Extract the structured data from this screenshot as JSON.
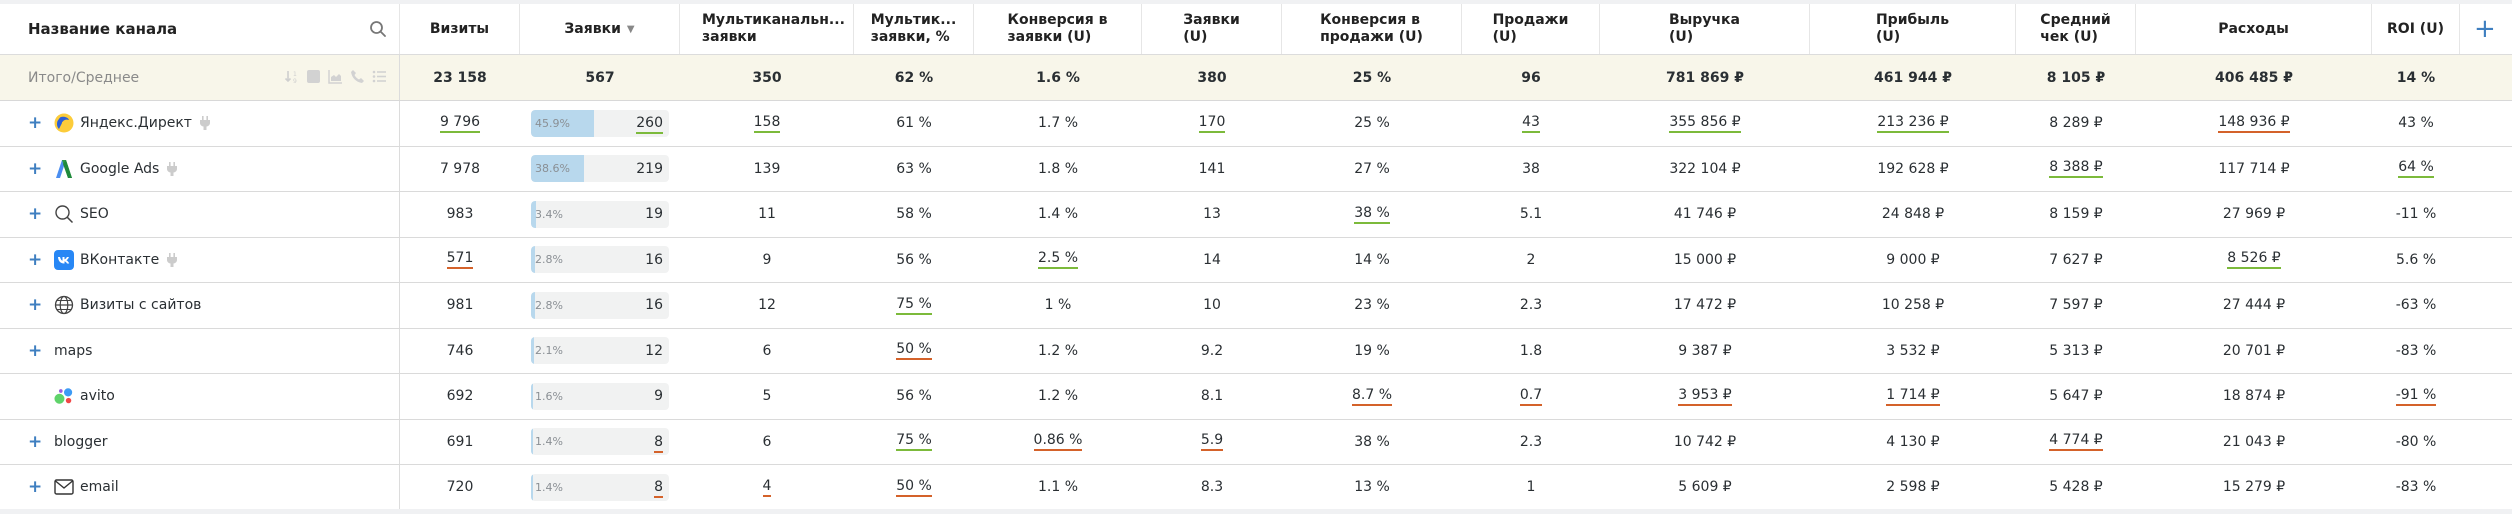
{
  "header": {
    "columns": [
      {
        "label": "Название канала"
      },
      {
        "label": "Визиты"
      },
      {
        "label": "Заявки",
        "sorted": "desc"
      },
      {
        "label": "Мультиканальн... заявки",
        "line1": "Мультиканальн...",
        "line2": "заявки"
      },
      {
        "label": "Мультик... заявки, %",
        "line1": "Мультик...",
        "line2": "заявки, %"
      },
      {
        "label": "Конверсия в заявки (U)",
        "line1": "Конверсия в",
        "line2": "заявки (U)"
      },
      {
        "label": "Заявки (U)",
        "line1": "Заявки",
        "line2": "(U)"
      },
      {
        "label": "Конверсия в продажи (U)",
        "line1": "Конверсия в",
        "line2": "продажи (U)"
      },
      {
        "label": "Продажи (U)",
        "line1": "Продажи",
        "line2": "(U)"
      },
      {
        "label": "Выручка (U)",
        "line1": "Выручка",
        "line2": "(U)"
      },
      {
        "label": "Прибыль (U)",
        "line1": "Прибыль",
        "line2": "(U)"
      },
      {
        "label": "Средний чек (U)",
        "line1": "Средний",
        "line2": "чек (U)"
      },
      {
        "label": "Расходы"
      },
      {
        "label": "ROI (U)"
      }
    ],
    "add_column_label": "+",
    "search_icon": "search-icon"
  },
  "total": {
    "label": "Итого/Среднее",
    "tools": [
      "sort-numeric-icon",
      "square-icon",
      "area-chart-icon",
      "phone-icon",
      "list-icon"
    ],
    "values": [
      "23 158",
      "567",
      "350",
      "62 %",
      "1.6 %",
      "380",
      "25 %",
      "96",
      "781 869 ₽",
      "461 944 ₽",
      "8 105 ₽",
      "406 485 ₽",
      "14 %"
    ]
  },
  "colors": {
    "good_underline": "#7cba3b",
    "bad_underline": "#d4622a",
    "bar_fill": "#b8d8ed",
    "total_bg": "#f8f6ea",
    "accent": "#3f7fc0"
  },
  "rows": [
    {
      "name": "Яндекс.Директ",
      "icon": "yandex-direct-icon",
      "expandable": true,
      "plug": true,
      "visits": "9 796",
      "leads_pct": "45.9%",
      "leads_share": 45.9,
      "leads": "260",
      "multi": "158",
      "multi_pct": "61 %",
      "conv_leads": "1.7 %",
      "leads_u": "170",
      "conv_sales": "25 %",
      "sales": "43",
      "revenue": "355 856 ₽",
      "profit": "213 236 ₽",
      "avg_check": "8 289 ₽",
      "costs": "148 936 ₽",
      "roi": "43 %",
      "marks": {
        "visits": "g",
        "leads": "g",
        "multi": "g",
        "leads_u": "g",
        "sales": "g",
        "revenue": "g",
        "profit": "g",
        "costs": "r"
      }
    },
    {
      "name": "Google Ads",
      "icon": "google-ads-icon",
      "expandable": true,
      "plug": true,
      "visits": "7 978",
      "leads_pct": "38.6%",
      "leads_share": 38.6,
      "leads": "219",
      "multi": "139",
      "multi_pct": "63 %",
      "conv_leads": "1.8 %",
      "leads_u": "141",
      "conv_sales": "27 %",
      "sales": "38",
      "revenue": "322 104 ₽",
      "profit": "192 628 ₽",
      "avg_check": "8 388 ₽",
      "costs": "117 714 ₽",
      "roi": "64 %",
      "marks": {
        "avg_check": "g",
        "roi": "g"
      }
    },
    {
      "name": "SEO",
      "icon": "magnifier-icon",
      "expandable": true,
      "plug": false,
      "visits": "983",
      "leads_pct": "3.4%",
      "leads_share": 3.4,
      "leads": "19",
      "multi": "11",
      "multi_pct": "58 %",
      "conv_leads": "1.4 %",
      "leads_u": "13",
      "conv_sales": "38 %",
      "sales": "5.1",
      "revenue": "41 746 ₽",
      "profit": "24 848 ₽",
      "avg_check": "8 159 ₽",
      "costs": "27 969 ₽",
      "roi": "-11 %",
      "marks": {
        "conv_sales": "g"
      }
    },
    {
      "name": "ВКонтакте",
      "icon": "vk-icon",
      "expandable": true,
      "plug": true,
      "visits": "571",
      "leads_pct": "2.8%",
      "leads_share": 2.8,
      "leads": "16",
      "multi": "9",
      "multi_pct": "56 %",
      "conv_leads": "2.5 %",
      "leads_u": "14",
      "conv_sales": "14 %",
      "sales": "2",
      "revenue": "15 000 ₽",
      "profit": "9 000 ₽",
      "avg_check": "7 627 ₽",
      "costs": "8 526 ₽",
      "roi": "5.6 %",
      "marks": {
        "visits": "r",
        "conv_leads": "g",
        "costs": "g"
      }
    },
    {
      "name": "Визиты с сайтов",
      "icon": "globe-icon",
      "expandable": true,
      "plug": false,
      "visits": "981",
      "leads_pct": "2.8%",
      "leads_share": 2.8,
      "leads": "16",
      "multi": "12",
      "multi_pct": "75 %",
      "conv_leads": "1 %",
      "leads_u": "10",
      "conv_sales": "23 %",
      "sales": "2.3",
      "revenue": "17 472 ₽",
      "profit": "10 258 ₽",
      "avg_check": "7 597 ₽",
      "costs": "27 444 ₽",
      "roi": "-63 %",
      "marks": {
        "multi_pct": "g"
      }
    },
    {
      "name": "maps",
      "icon": "",
      "expandable": true,
      "plug": false,
      "visits": "746",
      "leads_pct": "2.1%",
      "leads_share": 2.1,
      "leads": "12",
      "multi": "6",
      "multi_pct": "50 %",
      "conv_leads": "1.2 %",
      "leads_u": "9.2",
      "conv_sales": "19 %",
      "sales": "1.8",
      "revenue": "9 387 ₽",
      "profit": "3 532 ₽",
      "avg_check": "5 313 ₽",
      "costs": "20 701 ₽",
      "roi": "-83 %",
      "marks": {
        "multi_pct": "r"
      }
    },
    {
      "name": "avito",
      "icon": "avito-icon",
      "expandable": false,
      "plug": false,
      "visits": "692",
      "leads_pct": "1.6%",
      "leads_share": 1.6,
      "leads": "9",
      "multi": "5",
      "multi_pct": "56 %",
      "conv_leads": "1.2 %",
      "leads_u": "8.1",
      "conv_sales": "8.7 %",
      "sales": "0.7",
      "revenue": "3 953 ₽",
      "profit": "1 714 ₽",
      "avg_check": "5 647 ₽",
      "costs": "18 874 ₽",
      "roi": "-91 %",
      "marks": {
        "conv_sales": "r",
        "sales": "r",
        "revenue": "r",
        "profit": "r",
        "roi": "r"
      }
    },
    {
      "name": "blogger",
      "icon": "",
      "expandable": true,
      "plug": false,
      "visits": "691",
      "leads_pct": "1.4%",
      "leads_share": 1.4,
      "leads": "8",
      "multi": "6",
      "multi_pct": "75 %",
      "conv_leads": "0.86 %",
      "leads_u": "5.9",
      "conv_sales": "38 %",
      "sales": "2.3",
      "revenue": "10 742 ₽",
      "profit": "4 130 ₽",
      "avg_check": "4 774 ₽",
      "costs": "21 043 ₽",
      "roi": "-80 %",
      "marks": {
        "leads": "r",
        "multi_pct": "g",
        "conv_leads": "r",
        "leads_u": "r",
        "avg_check": "r"
      }
    },
    {
      "name": "email",
      "icon": "envelope-icon",
      "expandable": true,
      "plug": false,
      "visits": "720",
      "leads_pct": "1.4%",
      "leads_share": 1.4,
      "leads": "8",
      "multi": "4",
      "multi_pct": "50 %",
      "conv_leads": "1.1 %",
      "leads_u": "8.3",
      "conv_sales": "13 %",
      "sales": "1",
      "revenue": "5 609 ₽",
      "profit": "2 598 ₽",
      "avg_check": "5 428 ₽",
      "costs": "15 279 ₽",
      "roi": "-83 %",
      "marks": {
        "leads": "r",
        "multi": "r",
        "multi_pct": "r"
      }
    }
  ]
}
